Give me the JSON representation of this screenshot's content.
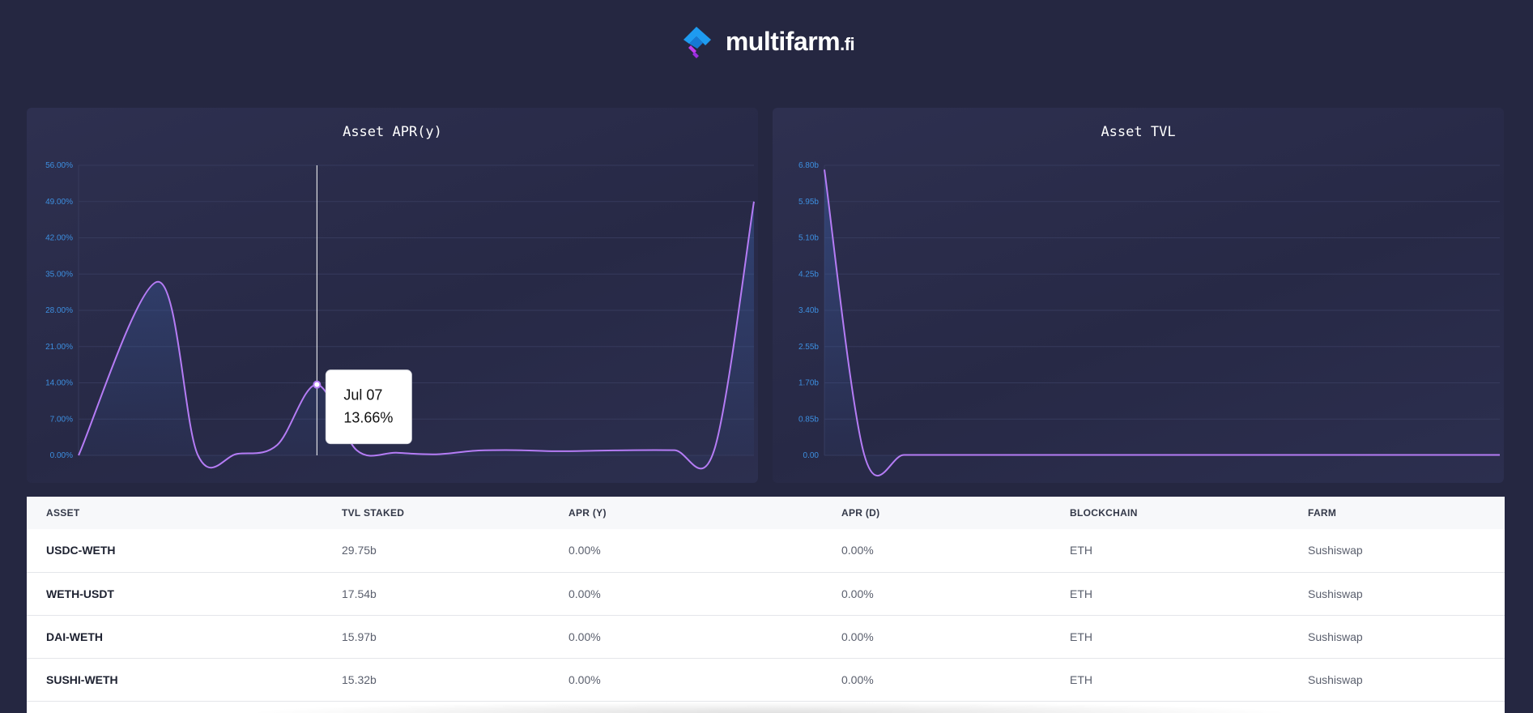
{
  "brand": {
    "name": "multifarm",
    "suffix": ".fi",
    "colors": {
      "blue": "#1e9bf0",
      "purple": "#c13cf0"
    }
  },
  "colors": {
    "background": "#252741",
    "line": "#b57cf5",
    "tick": "#3d8fe0"
  },
  "charts": {
    "apr": {
      "title": "Asset APR(y)",
      "tooltip": {
        "date": "Jul 07",
        "value": "13.66%"
      }
    },
    "tvl": {
      "title": "Asset TVL"
    }
  },
  "chart_data": [
    {
      "type": "area",
      "title": "Asset APR(y)",
      "xlabel": "",
      "ylabel": "",
      "ylim": [
        0,
        56
      ],
      "yticks": [
        "0.00%",
        "7.00%",
        "14.00%",
        "21.00%",
        "28.00%",
        "35.00%",
        "42.00%",
        "49.00%",
        "56.00%"
      ],
      "grid": true,
      "x": [
        0,
        2,
        3,
        4,
        5,
        6,
        7,
        8,
        9,
        10,
        11,
        12,
        13,
        14,
        15,
        16,
        17
      ],
      "values": [
        0,
        33.5,
        0.1,
        0.3,
        2,
        13.66,
        1,
        0.5,
        0.2,
        0.9,
        1,
        0.8,
        0.9,
        1,
        1,
        1,
        49
      ],
      "highlight": {
        "date": "Jul 07",
        "value": 13.66
      }
    },
    {
      "type": "area",
      "title": "Asset TVL",
      "xlabel": "",
      "ylabel": "",
      "ylim": [
        0,
        6.8
      ],
      "yticks": [
        "0.00",
        "0.85b",
        "1.70b",
        "2.55b",
        "3.40b",
        "4.25b",
        "5.10b",
        "5.95b",
        "6.80b"
      ],
      "grid": true,
      "x": [
        0,
        1,
        2,
        3,
        4,
        5,
        6,
        7,
        8,
        9,
        10,
        11,
        12,
        13,
        14,
        15,
        16,
        17
      ],
      "values": [
        6.7,
        0.02,
        0.01,
        0.01,
        0.01,
        0.01,
        0.01,
        0.01,
        0.01,
        0.01,
        0.01,
        0.01,
        0.01,
        0.01,
        0.01,
        0.01,
        0.01,
        0.01
      ]
    }
  ],
  "table": {
    "headers": [
      "ASSET",
      "TVL STAKED",
      "APR (Y)",
      "APR (D)",
      "BLOCKCHAIN",
      "FARM"
    ],
    "rows": [
      [
        "USDC-WETH",
        "29.75b",
        "0.00%",
        "0.00%",
        "ETH",
        "Sushiswap"
      ],
      [
        "WETH-USDT",
        "17.54b",
        "0.00%",
        "0.00%",
        "ETH",
        "Sushiswap"
      ],
      [
        "DAI-WETH",
        "15.97b",
        "0.00%",
        "0.00%",
        "ETH",
        "Sushiswap"
      ],
      [
        "SUSHI-WETH",
        "15.32b",
        "0.00%",
        "0.00%",
        "ETH",
        "Sushiswap"
      ]
    ]
  }
}
